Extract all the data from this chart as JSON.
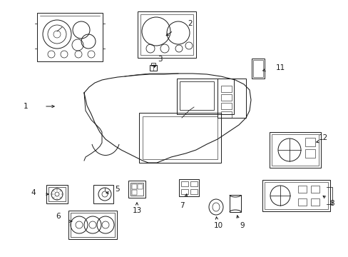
{
  "bg_color": "#ffffff",
  "line_color": "#1a1a1a",
  "figsize": [
    4.89,
    3.6
  ],
  "dpi": 100,
  "lw": 0.7,
  "label_fs": 7.5
}
